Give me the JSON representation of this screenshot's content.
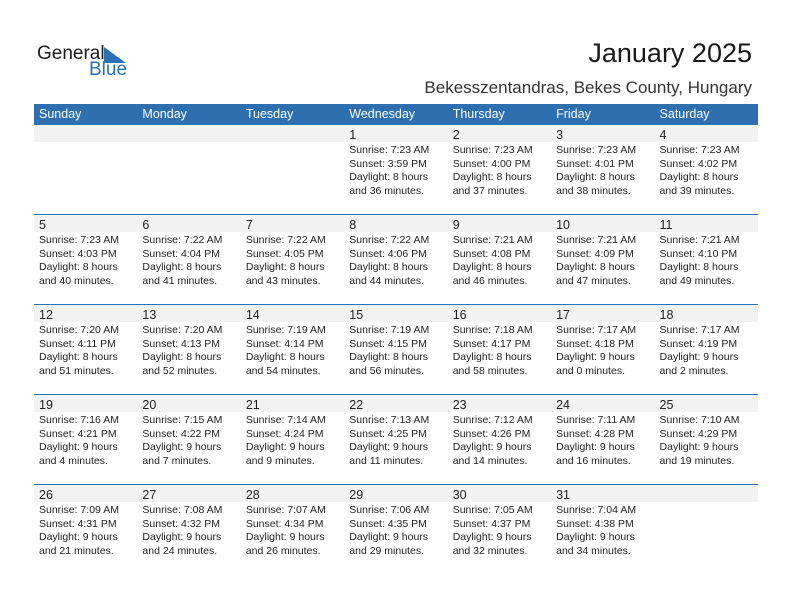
{
  "logo": {
    "general": "General",
    "blue": "Blue",
    "accent": "#2a72b5"
  },
  "title": "January 2025",
  "location": "Bekesszentandras, Bekes County, Hungary",
  "header_color": "#2e6fb0",
  "weekdays": [
    "Sunday",
    "Monday",
    "Tuesday",
    "Wednesday",
    "Thursday",
    "Friday",
    "Saturday"
  ],
  "first_weekday_index": 3,
  "days": [
    {
      "day": "1",
      "sunrise": "Sunrise: 7:23 AM",
      "sunset": "Sunset: 3:59 PM",
      "daylight": "Daylight: 8 hours",
      "minutes": "and 36 minutes."
    },
    {
      "day": "2",
      "sunrise": "Sunrise: 7:23 AM",
      "sunset": "Sunset: 4:00 PM",
      "daylight": "Daylight: 8 hours",
      "minutes": "and 37 minutes."
    },
    {
      "day": "3",
      "sunrise": "Sunrise: 7:23 AM",
      "sunset": "Sunset: 4:01 PM",
      "daylight": "Daylight: 8 hours",
      "minutes": "and 38 minutes."
    },
    {
      "day": "4",
      "sunrise": "Sunrise: 7:23 AM",
      "sunset": "Sunset: 4:02 PM",
      "daylight": "Daylight: 8 hours",
      "minutes": "and 39 minutes."
    },
    {
      "day": "5",
      "sunrise": "Sunrise: 7:23 AM",
      "sunset": "Sunset: 4:03 PM",
      "daylight": "Daylight: 8 hours",
      "minutes": "and 40 minutes."
    },
    {
      "day": "6",
      "sunrise": "Sunrise: 7:22 AM",
      "sunset": "Sunset: 4:04 PM",
      "daylight": "Daylight: 8 hours",
      "minutes": "and 41 minutes."
    },
    {
      "day": "7",
      "sunrise": "Sunrise: 7:22 AM",
      "sunset": "Sunset: 4:05 PM",
      "daylight": "Daylight: 8 hours",
      "minutes": "and 43 minutes."
    },
    {
      "day": "8",
      "sunrise": "Sunrise: 7:22 AM",
      "sunset": "Sunset: 4:06 PM",
      "daylight": "Daylight: 8 hours",
      "minutes": "and 44 minutes."
    },
    {
      "day": "9",
      "sunrise": "Sunrise: 7:21 AM",
      "sunset": "Sunset: 4:08 PM",
      "daylight": "Daylight: 8 hours",
      "minutes": "and 46 minutes."
    },
    {
      "day": "10",
      "sunrise": "Sunrise: 7:21 AM",
      "sunset": "Sunset: 4:09 PM",
      "daylight": "Daylight: 8 hours",
      "minutes": "and 47 minutes."
    },
    {
      "day": "11",
      "sunrise": "Sunrise: 7:21 AM",
      "sunset": "Sunset: 4:10 PM",
      "daylight": "Daylight: 8 hours",
      "minutes": "and 49 minutes."
    },
    {
      "day": "12",
      "sunrise": "Sunrise: 7:20 AM",
      "sunset": "Sunset: 4:11 PM",
      "daylight": "Daylight: 8 hours",
      "minutes": "and 51 minutes."
    },
    {
      "day": "13",
      "sunrise": "Sunrise: 7:20 AM",
      "sunset": "Sunset: 4:13 PM",
      "daylight": "Daylight: 8 hours",
      "minutes": "and 52 minutes."
    },
    {
      "day": "14",
      "sunrise": "Sunrise: 7:19 AM",
      "sunset": "Sunset: 4:14 PM",
      "daylight": "Daylight: 8 hours",
      "minutes": "and 54 minutes."
    },
    {
      "day": "15",
      "sunrise": "Sunrise: 7:19 AM",
      "sunset": "Sunset: 4:15 PM",
      "daylight": "Daylight: 8 hours",
      "minutes": "and 56 minutes."
    },
    {
      "day": "16",
      "sunrise": "Sunrise: 7:18 AM",
      "sunset": "Sunset: 4:17 PM",
      "daylight": "Daylight: 8 hours",
      "minutes": "and 58 minutes."
    },
    {
      "day": "17",
      "sunrise": "Sunrise: 7:17 AM",
      "sunset": "Sunset: 4:18 PM",
      "daylight": "Daylight: 9 hours",
      "minutes": "and 0 minutes."
    },
    {
      "day": "18",
      "sunrise": "Sunrise: 7:17 AM",
      "sunset": "Sunset: 4:19 PM",
      "daylight": "Daylight: 9 hours",
      "minutes": "and 2 minutes."
    },
    {
      "day": "19",
      "sunrise": "Sunrise: 7:16 AM",
      "sunset": "Sunset: 4:21 PM",
      "daylight": "Daylight: 9 hours",
      "minutes": "and 4 minutes."
    },
    {
      "day": "20",
      "sunrise": "Sunrise: 7:15 AM",
      "sunset": "Sunset: 4:22 PM",
      "daylight": "Daylight: 9 hours",
      "minutes": "and 7 minutes."
    },
    {
      "day": "21",
      "sunrise": "Sunrise: 7:14 AM",
      "sunset": "Sunset: 4:24 PM",
      "daylight": "Daylight: 9 hours",
      "minutes": "and 9 minutes."
    },
    {
      "day": "22",
      "sunrise": "Sunrise: 7:13 AM",
      "sunset": "Sunset: 4:25 PM",
      "daylight": "Daylight: 9 hours",
      "minutes": "and 11 minutes."
    },
    {
      "day": "23",
      "sunrise": "Sunrise: 7:12 AM",
      "sunset": "Sunset: 4:26 PM",
      "daylight": "Daylight: 9 hours",
      "minutes": "and 14 minutes."
    },
    {
      "day": "24",
      "sunrise": "Sunrise: 7:11 AM",
      "sunset": "Sunset: 4:28 PM",
      "daylight": "Daylight: 9 hours",
      "minutes": "and 16 minutes."
    },
    {
      "day": "25",
      "sunrise": "Sunrise: 7:10 AM",
      "sunset": "Sunset: 4:29 PM",
      "daylight": "Daylight: 9 hours",
      "minutes": "and 19 minutes."
    },
    {
      "day": "26",
      "sunrise": "Sunrise: 7:09 AM",
      "sunset": "Sunset: 4:31 PM",
      "daylight": "Daylight: 9 hours",
      "minutes": "and 21 minutes."
    },
    {
      "day": "27",
      "sunrise": "Sunrise: 7:08 AM",
      "sunset": "Sunset: 4:32 PM",
      "daylight": "Daylight: 9 hours",
      "minutes": "and 24 minutes."
    },
    {
      "day": "28",
      "sunrise": "Sunrise: 7:07 AM",
      "sunset": "Sunset: 4:34 PM",
      "daylight": "Daylight: 9 hours",
      "minutes": "and 26 minutes."
    },
    {
      "day": "29",
      "sunrise": "Sunrise: 7:06 AM",
      "sunset": "Sunset: 4:35 PM",
      "daylight": "Daylight: 9 hours",
      "minutes": "and 29 minutes."
    },
    {
      "day": "30",
      "sunrise": "Sunrise: 7:05 AM",
      "sunset": "Sunset: 4:37 PM",
      "daylight": "Daylight: 9 hours",
      "minutes": "and 32 minutes."
    },
    {
      "day": "31",
      "sunrise": "Sunrise: 7:04 AM",
      "sunset": "Sunset: 4:38 PM",
      "daylight": "Daylight: 9 hours",
      "minutes": "and 34 minutes."
    }
  ]
}
